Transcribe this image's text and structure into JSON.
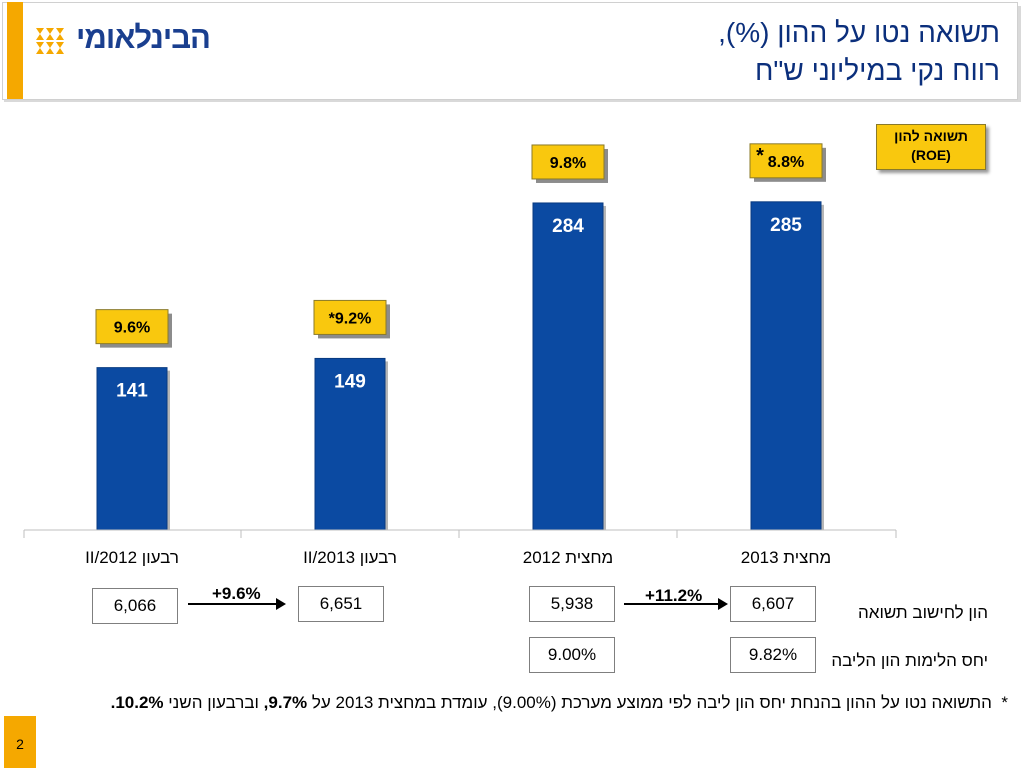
{
  "header": {
    "logo_text": "הבינלאומי",
    "title_line1": "תשואה נטו על ההון (%),",
    "title_line2": "רווח נקי במיליוני ש\"ח"
  },
  "colors": {
    "bar": "#0b4aa2",
    "label_box": "#f9c80e",
    "accent": "#f5a800",
    "title": "#0b2f7c"
  },
  "chart_data": {
    "type": "bar",
    "categories": [
      "רבעון II/2012",
      "רבעון II/2013",
      "מחצית 2012",
      "מחצית 2013"
    ],
    "values": [
      141,
      149,
      284,
      285
    ],
    "roe_labels": [
      "9.6%",
      "*9.2%",
      "9.8%",
      "8.8%"
    ],
    "roe_asterisk_index": 3,
    "legend_label": "תשואה להון (ROE)",
    "ylim": [
      0,
      330
    ]
  },
  "equity_row": {
    "label": "הון לחישוב תשואה",
    "values": [
      "6,066",
      "6,651",
      "5,938",
      "6,607"
    ],
    "growth": [
      "+9.6%",
      "+11.2%"
    ]
  },
  "tier_row": {
    "label": "יחס הלימות הון הליבה",
    "values": [
      "9.00%",
      "9.82%"
    ]
  },
  "footnote": {
    "star": "*",
    "text_a": "התשואה נטו על ההון בהנחת יחס הון ליבה לפי ממוצע מערכת (9.00%), עומדת במחצית 2013 על ",
    "bold_a": "9.7%,",
    "text_b": " וברבעון השני ",
    "bold_b": "10.2%."
  },
  "page_number": "2"
}
